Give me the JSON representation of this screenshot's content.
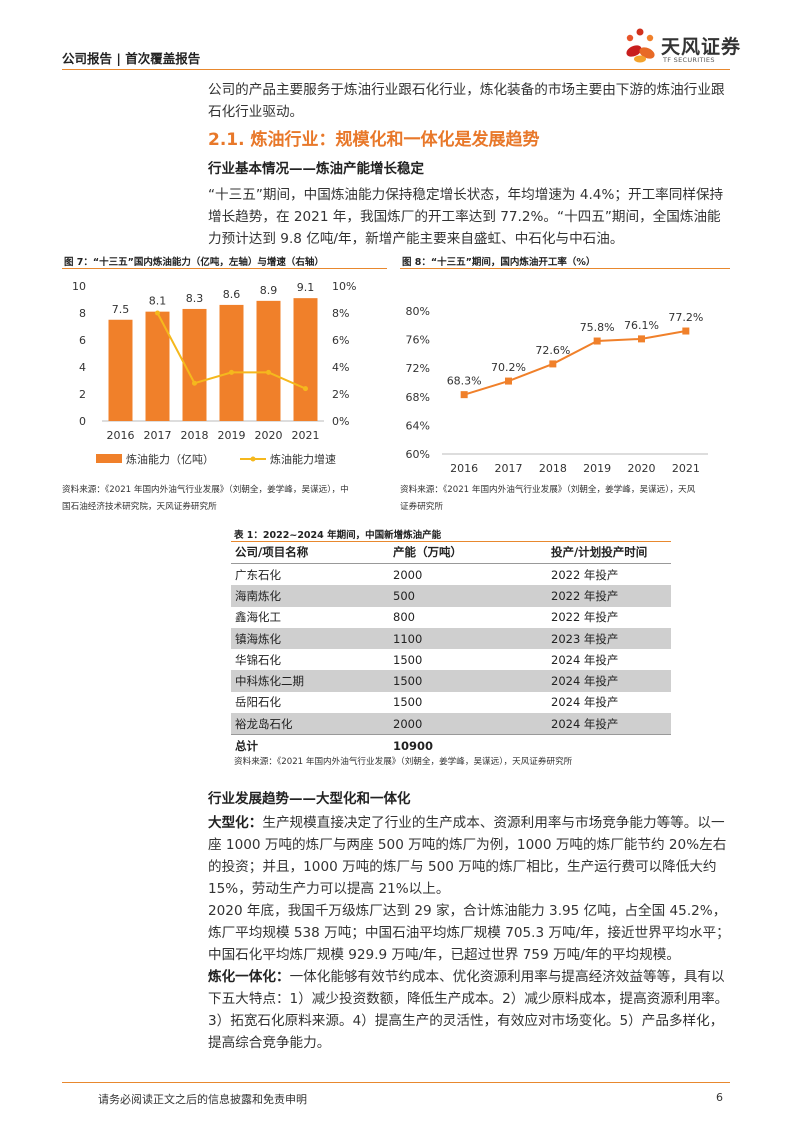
{
  "header": {
    "left_text": "公司报告 | 首次覆盖报告",
    "logo_cn": "天风证券",
    "logo_en": "TF SECURITIES"
  },
  "intro": "公司的产品主要服务于炼油行业跟石化行业，炼化装备的市场主要由下游的炼油行业跟石化行业驱动。",
  "section_title": "2.1. 炼油行业：规模化和一体化是发展趋势",
  "sub1": "行业基本情况——炼油产能增长稳定",
  "para1": "“十三五”期间，中国炼油能力保持稳定增长状态，年均增速为 4.4%；开工率同样保持增长趋势，在 2021 年，我国炼厂的开工率达到 77.2%。“十四五”期间，全国炼油能力预计达到 9.8 亿吨/年，新增产能主要来自盛虹、中石化与中石油。",
  "fig7": {
    "title": "图 7：“十三五”国内炼油能力（亿吨，左轴）与增速（右轴）",
    "source_line1": "资料来源：《2021 年国内外油气行业发展》（刘朝全，姜学峰，吴谋远），中",
    "source_line2": "国石油经济技术研究院，天风证券研究所"
  },
  "fig8": {
    "title": "图 8：“十三五”期间，国内炼油开工率（%）",
    "source_line1": "资料来源：《2021 年国内外油气行业发展》（刘朝全，姜学峰，吴谋远），天风",
    "source_line2": "证券研究所"
  },
  "chart_data": [
    {
      "type": "bar",
      "categories": [
        "2016",
        "2017",
        "2018",
        "2019",
        "2020",
        "2021"
      ],
      "series": [
        {
          "name": "炼油能力（亿吨）",
          "type": "bar",
          "axis": "left",
          "values": [
            7.5,
            8.1,
            8.3,
            8.6,
            8.9,
            9.1
          ],
          "labels": [
            "7.5",
            "8.1",
            "8.3",
            "8.6",
            "8.9",
            "9.1"
          ],
          "color": "#f0802a"
        },
        {
          "name": "炼油能力增速",
          "type": "line",
          "axis": "right",
          "values": [
            null,
            8.0,
            2.8,
            3.6,
            3.6,
            2.4
          ],
          "color": "#f5b81d"
        }
      ],
      "yleft_ticks": [
        "0",
        "2",
        "4",
        "6",
        "8",
        "10"
      ],
      "yleft_lim": [
        0,
        10
      ],
      "yright_ticks": [
        "0%",
        "2%",
        "4%",
        "6%",
        "8%",
        "10%"
      ],
      "yright_lim": [
        0,
        10
      ],
      "legend": "bottom"
    },
    {
      "type": "line",
      "categories": [
        "2016",
        "2017",
        "2018",
        "2019",
        "2020",
        "2021"
      ],
      "series": [
        {
          "name": "",
          "values": [
            68.3,
            70.2,
            72.6,
            75.8,
            76.1,
            77.2
          ],
          "labels": [
            "68.3%",
            "70.2%",
            "72.6%",
            "75.8%",
            "76.1%",
            "77.2%"
          ],
          "color": "#f0802a"
        }
      ],
      "y_ticks": [
        "60%",
        "64%",
        "68%",
        "72%",
        "76%",
        "80%"
      ],
      "ylim": [
        60,
        80
      ]
    }
  ],
  "table1": {
    "title": "表 1：2022~2024 年期间，中国新增炼油产能",
    "headers": [
      "公司/项目名称",
      "产能（万吨）",
      "投产/计划投产时间"
    ],
    "rows": [
      [
        "广东石化",
        "2000",
        "2022 年投产"
      ],
      [
        "海南炼化",
        "500",
        "2022 年投产"
      ],
      [
        "鑫海化工",
        "800",
        "2022 年投产"
      ],
      [
        "镇海炼化",
        "1100",
        "2023 年投产"
      ],
      [
        "华锦石化",
        "1500",
        "2024 年投产"
      ],
      [
        "中科炼化二期",
        "1500",
        "2024 年投产"
      ],
      [
        "岳阳石化",
        "1500",
        "2024 年投产"
      ],
      [
        "裕龙岛石化",
        "2000",
        "2024 年投产"
      ]
    ],
    "total": [
      "总计",
      "10900",
      ""
    ],
    "source": "资料来源：《2021 年国内外油气行业发展》（刘朝全，姜学峰，吴谋远），天风证券研究所"
  },
  "sub2": "行业发展趋势——大型化和一体化",
  "para2_key": "大型化：",
  "para2": "生产规模直接决定了行业的生产成本、资源利用率与市场竞争能力等等。以一座 1000 万吨的炼厂与两座 500 万吨的炼厂为例，1000 万吨的炼厂能节约 20%左右的投资；并且，1000 万吨的炼厂与 500 万吨的炼厂相比，生产运行费可以降低大约 15%，劳动生产力可以提高 21%以上。",
  "para3": "2020 年底，我国千万级炼厂达到 29 家，合计炼油能力 3.95 亿吨，占全国 45.2%，炼厂平均规模 538 万吨；中国石油平均炼厂规模 705.3 万吨/年，接近世界平均水平；中国石化平均炼厂规模 929.9 万吨/年，已超过世界 759 万吨/年的平均规模。",
  "para4_key": "炼化一体化：",
  "para4": "一体化能够有效节约成本、优化资源利用率与提高经济效益等等，具有以下五大特点：1）减少投资数额，降低生产成本。2）减少原料成本，提高资源利用率。3）拓宽石化原料来源。4）提高生产的灵活性，有效应对市场变化。5）产品多样化，提高综合竞争能力。",
  "footer": {
    "disclaimer": "请务必阅读正文之后的信息披露和免责申明",
    "page": "6"
  }
}
